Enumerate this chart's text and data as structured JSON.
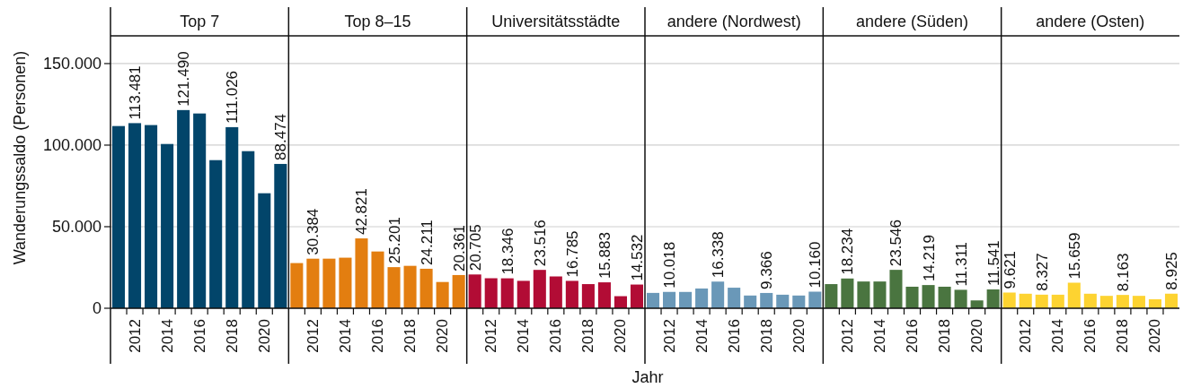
{
  "chart_data": [
    {
      "type": "bar",
      "title": "Top 7",
      "ylabel": "Wanderungssaldo (Personen)",
      "categories": [
        null,
        "2012",
        null,
        "2014",
        null,
        "2016",
        null,
        "2018",
        null,
        "2020",
        null
      ],
      "values": [
        111700,
        113481,
        112300,
        100700,
        121490,
        119400,
        90800,
        111026,
        96300,
        70500,
        88474
      ],
      "color": "#02456a",
      "value_labels": [
        null,
        "113.481",
        null,
        null,
        "121.490",
        null,
        null,
        "111.026",
        null,
        null,
        "88.474"
      ],
      "ylim": [
        0,
        167000
      ],
      "yticks": [
        0,
        {
          "value": 50000,
          "label": "50.000"
        },
        {
          "value": 100000,
          "label": "100.000"
        },
        {
          "value": 150000,
          "label": "150.000"
        }
      ],
      "grid": "y"
    },
    {
      "type": "bar",
      "title": "Top 8–15",
      "categories": [
        null,
        "2012",
        null,
        "2014",
        null,
        "2016",
        null,
        "2018",
        null,
        "2020",
        null
      ],
      "values": [
        27700,
        30384,
        30400,
        31000,
        42821,
        34800,
        25201,
        26000,
        24211,
        16100,
        20361
      ],
      "color": "#e37e10",
      "value_labels": [
        null,
        "30.384",
        null,
        null,
        "42.821",
        null,
        "25.201",
        null,
        "24.211",
        null,
        "20.361"
      ],
      "ylim": [
        0,
        167000
      ],
      "yticks": [
        0,
        50000,
        100000,
        150000
      ],
      "grid": "y",
      "tick_labels": "x"
    },
    {
      "type": "bar",
      "title": "Universitätsstädte",
      "categories": [
        null,
        "2012",
        null,
        "2014",
        null,
        "2016",
        null,
        "2018",
        null,
        "2020",
        null
      ],
      "values": [
        20705,
        18400,
        18346,
        16800,
        23516,
        19500,
        16785,
        14800,
        15883,
        7400,
        14532
      ],
      "color": "#b20c35",
      "value_labels": [
        "20.705",
        null,
        "18.346",
        null,
        "23.516",
        null,
        "16.785",
        null,
        "15.883",
        null,
        "14.532"
      ],
      "ylim": [
        0,
        167000
      ],
      "yticks": [
        0,
        50000,
        100000,
        150000
      ],
      "grid": "y",
      "tick_labels": "x"
    },
    {
      "type": "bar",
      "title": "andere (Nordwest)",
      "xlabel": "Jahr",
      "categories": [
        null,
        "2012",
        null,
        "2014",
        null,
        "2016",
        null,
        "2018",
        null,
        "2020",
        null
      ],
      "values": [
        9400,
        10018,
        10000,
        12100,
        16338,
        12600,
        7800,
        9366,
        8300,
        7800,
        10160
      ],
      "color": "#6a98b8",
      "value_labels": [
        null,
        "10.018",
        null,
        null,
        "16.338",
        null,
        null,
        "9.366",
        null,
        null,
        "10.160"
      ],
      "ylim": [
        0,
        167000
      ],
      "yticks": [
        0,
        50000,
        100000,
        150000
      ],
      "grid": "y",
      "tick_labels": "x"
    },
    {
      "type": "bar",
      "title": "andere (Süden)",
      "categories": [
        null,
        "2012",
        null,
        "2014",
        null,
        "2016",
        null,
        "2018",
        null,
        "2020",
        null
      ],
      "values": [
        14800,
        18234,
        16400,
        16400,
        23546,
        13200,
        14219,
        13200,
        11311,
        4800,
        11541
      ],
      "color": "#4a7540",
      "value_labels": [
        null,
        "18.234",
        null,
        null,
        "23.546",
        null,
        "14.219",
        null,
        "11.311",
        null,
        "11.541"
      ],
      "ylim": [
        0,
        167000
      ],
      "yticks": [
        0,
        50000,
        100000,
        150000
      ],
      "grid": "y",
      "tick_labels": "x"
    },
    {
      "type": "bar",
      "title": "andere (Osten)",
      "categories": [
        null,
        "2012",
        null,
        "2014",
        null,
        "2016",
        null,
        "2018",
        null,
        "2020",
        null
      ],
      "values": [
        9621,
        8900,
        8327,
        8300,
        15659,
        8900,
        7600,
        8163,
        7600,
        5500,
        8925
      ],
      "color": "#fdd331",
      "value_labels": [
        "9.621",
        null,
        "8.327",
        null,
        "15.659",
        null,
        null,
        "8.163",
        null,
        null,
        "8.925"
      ],
      "ylim": [
        0,
        167000
      ],
      "yticks": [
        0,
        50000,
        100000,
        150000
      ],
      "grid": "y",
      "tick_labels": "x"
    }
  ]
}
